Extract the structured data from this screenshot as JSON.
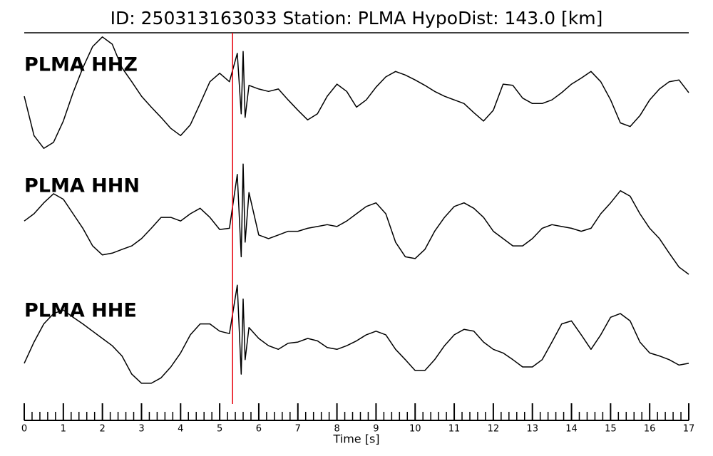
{
  "chart_data": {
    "type": "line",
    "title": "ID: 250313163033   Station: PLMA   HypoDist:   143.0 [km]",
    "xlabel": "Time [s]",
    "xlim": [
      0,
      17
    ],
    "xticks": [
      0,
      1,
      2,
      3,
      4,
      5,
      6,
      7,
      8,
      9,
      10,
      11,
      12,
      13,
      14,
      15,
      16,
      17
    ],
    "xminorticks": [
      0.2,
      0.4,
      0.6,
      0.8,
      1.2,
      1.4,
      1.6,
      1.8,
      2.2,
      2.4,
      2.6,
      2.8,
      3.2,
      3.4,
      3.6,
      3.8,
      4.2,
      4.4,
      4.6,
      4.8,
      5.2,
      5.4,
      5.6,
      5.8,
      6.2,
      6.4,
      6.6,
      6.8,
      7.2,
      7.4,
      7.6,
      7.8,
      8.2,
      8.4,
      8.6,
      8.8,
      9.2,
      9.4,
      9.6,
      9.8,
      10.2,
      10.4,
      10.6,
      10.8,
      11.2,
      11.4,
      11.6,
      11.8,
      12.2,
      12.4,
      12.6,
      12.8,
      13.2,
      13.4,
      13.6,
      13.8,
      14.2,
      14.4,
      14.6,
      14.8,
      15.2,
      15.4,
      15.6,
      15.8,
      16.2,
      16.4,
      16.6,
      16.8
    ],
    "ylim": [
      -1,
      1
    ],
    "pick_line": {
      "x": 5.33,
      "color": "#e8000b"
    },
    "label_color": "#4c9a00",
    "x": [
      0,
      0.25,
      0.5,
      0.75,
      1,
      1.25,
      1.5,
      1.75,
      2,
      2.25,
      2.5,
      2.75,
      3,
      3.25,
      3.5,
      3.75,
      4,
      4.25,
      4.5,
      4.75,
      5,
      5.25,
      5.45,
      5.55,
      5.6,
      5.65,
      5.75,
      6,
      6.25,
      6.5,
      6.75,
      7,
      7.25,
      7.5,
      7.75,
      8,
      8.25,
      8.5,
      8.75,
      9,
      9.25,
      9.5,
      9.75,
      10,
      10.25,
      10.5,
      10.75,
      11,
      11.25,
      11.5,
      11.75,
      12,
      12.25,
      12.5,
      12.75,
      13,
      13.25,
      13.5,
      13.75,
      14,
      14.25,
      14.5,
      14.75,
      15,
      15.25,
      15.5,
      15.75,
      16,
      16.25,
      16.5,
      16.75,
      17
    ],
    "series": [
      {
        "name": "PLMA HHZ",
        "color": "#000000",
        "values": [
          -0.06,
          -0.71,
          -0.92,
          -0.82,
          -0.47,
          0,
          0.41,
          0.76,
          0.92,
          0.8,
          0.41,
          0.18,
          -0.06,
          -0.24,
          -0.41,
          -0.59,
          -0.71,
          -0.53,
          -0.18,
          0.18,
          0.32,
          0.18,
          0.65,
          -0.35,
          0.68,
          -0.41,
          0.12,
          0.06,
          0.02,
          0.06,
          -0.12,
          -0.29,
          -0.45,
          -0.35,
          -0.06,
          0.14,
          0.02,
          -0.24,
          -0.12,
          0.09,
          0.26,
          0.35,
          0.29,
          0.21,
          0.12,
          0.02,
          -0.06,
          -0.12,
          -0.18,
          -0.33,
          -0.47,
          -0.29,
          0.14,
          0.12,
          -0.09,
          -0.18,
          -0.18,
          -0.12,
          0,
          0.14,
          0.24,
          0.35,
          0.18,
          -0.12,
          -0.5,
          -0.56,
          -0.38,
          -0.12,
          0.06,
          0.18,
          0.21,
          0
        ]
      },
      {
        "name": "PLMA HHN",
        "color": "#000000",
        "values": [
          -0.12,
          0,
          0.18,
          0.33,
          0.24,
          0,
          -0.24,
          -0.53,
          -0.68,
          -0.65,
          -0.59,
          -0.53,
          -0.41,
          -0.24,
          -0.06,
          -0.06,
          -0.12,
          0,
          0.09,
          -0.06,
          -0.26,
          -0.24,
          0.65,
          -0.71,
          0.82,
          -0.47,
          0.35,
          -0.35,
          -0.41,
          -0.35,
          -0.29,
          -0.29,
          -0.24,
          -0.21,
          -0.18,
          -0.21,
          -0.12,
          0,
          0.12,
          0.18,
          0,
          -0.47,
          -0.71,
          -0.74,
          -0.59,
          -0.29,
          -0.06,
          0.12,
          0.18,
          0.09,
          -0.06,
          -0.29,
          -0.41,
          -0.53,
          -0.53,
          -0.41,
          -0.24,
          -0.18,
          -0.21,
          -0.24,
          -0.29,
          -0.24,
          0,
          0.18,
          0.38,
          0.29,
          0,
          -0.24,
          -0.41,
          -0.65,
          -0.88,
          -1
        ]
      },
      {
        "name": "PLMA HHE",
        "color": "#000000",
        "values": [
          -0.41,
          -0.06,
          0.24,
          0.41,
          0.47,
          0.35,
          0.24,
          0.12,
          0,
          -0.12,
          -0.29,
          -0.59,
          -0.74,
          -0.74,
          -0.65,
          -0.47,
          -0.24,
          0.06,
          0.24,
          0.24,
          0.12,
          0.08,
          0.88,
          -0.59,
          0.65,
          -0.35,
          0.18,
          0,
          -0.12,
          -0.18,
          -0.08,
          -0.06,
          0,
          -0.04,
          -0.15,
          -0.18,
          -0.12,
          -0.04,
          0.06,
          0.12,
          0.06,
          -0.18,
          -0.35,
          -0.53,
          -0.53,
          -0.35,
          -0.12,
          0.06,
          0.15,
          0.12,
          -0.06,
          -0.18,
          -0.24,
          -0.35,
          -0.47,
          -0.47,
          -0.35,
          -0.06,
          0.24,
          0.29,
          0.06,
          -0.18,
          0.06,
          0.35,
          0.41,
          0.29,
          -0.06,
          -0.24,
          -0.29,
          -0.35,
          -0.44,
          -0.41
        ]
      }
    ]
  }
}
